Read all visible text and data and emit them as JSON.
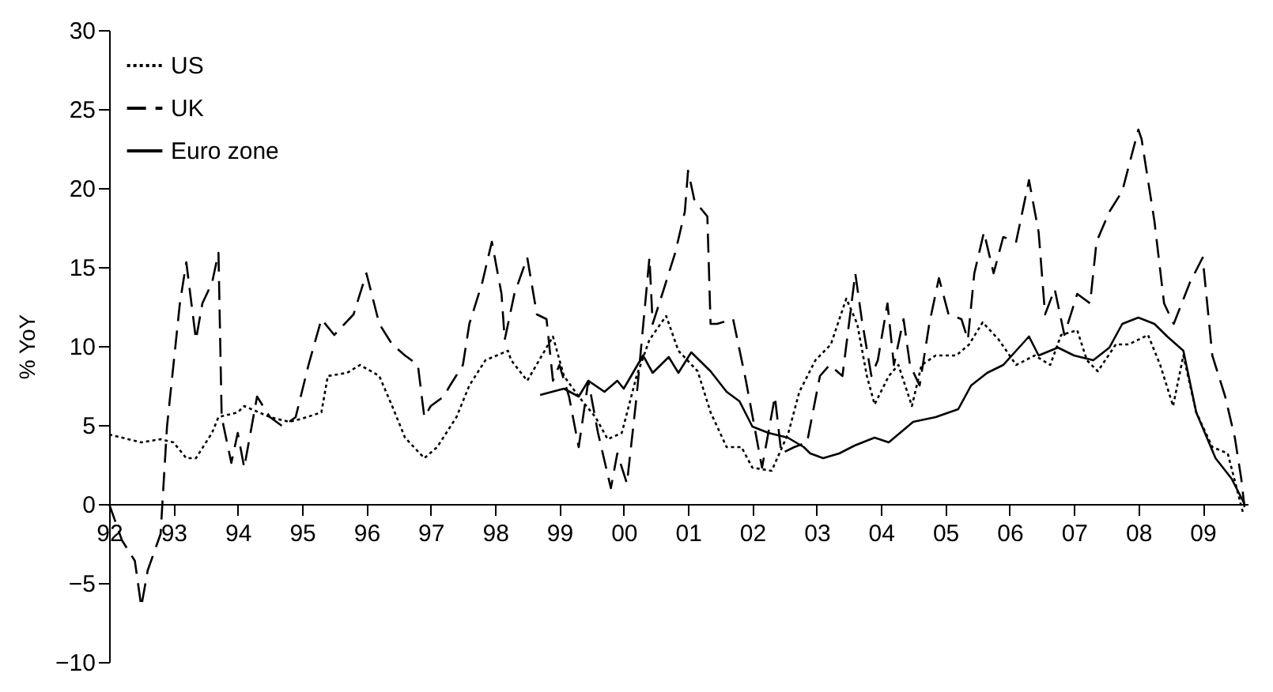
{
  "chart_data": {
    "type": "line",
    "ylabel": "% YoY",
    "legend": "top left",
    "grid": false,
    "marker": "none",
    "xlim": [
      1992,
      2009.7
    ],
    "ylim": [
      -10,
      30
    ],
    "xticks": [
      {
        "value": 1992,
        "label": "92"
      },
      {
        "value": 1993,
        "label": "93"
      },
      {
        "value": 1994,
        "label": "94"
      },
      {
        "value": 1995,
        "label": "95"
      },
      {
        "value": 1996,
        "label": "96"
      },
      {
        "value": 1997,
        "label": "97"
      },
      {
        "value": 1998,
        "label": "98"
      },
      {
        "value": 1999,
        "label": "99"
      },
      {
        "value": 2000,
        "label": "00"
      },
      {
        "value": 2001,
        "label": "01"
      },
      {
        "value": 2002,
        "label": "02"
      },
      {
        "value": 2003,
        "label": "03"
      },
      {
        "value": 2004,
        "label": "04"
      },
      {
        "value": 2005,
        "label": "05"
      },
      {
        "value": 2006,
        "label": "06"
      },
      {
        "value": 2007,
        "label": "07"
      },
      {
        "value": 2008,
        "label": "08"
      },
      {
        "value": 2009,
        "label": "09"
      }
    ],
    "yticks": [
      {
        "value": -10,
        "label": "−10"
      },
      {
        "value": -5,
        "label": "−5"
      },
      0,
      5,
      10,
      15,
      20,
      25,
      30
    ],
    "series": [
      {
        "name": "US",
        "color": "#000000",
        "line_style": "dotted",
        "x": [
          1992.0,
          1992.5,
          1992.8,
          1993.0,
          1993.2,
          1993.35,
          1993.6,
          1993.7,
          1994.0,
          1994.1,
          1994.5,
          1994.8,
          1995.0,
          1995.3,
          1995.4,
          1995.7,
          1995.9,
          1996.2,
          1996.4,
          1996.6,
          1996.9,
          1997.1,
          1997.4,
          1997.6,
          1997.85,
          1998.2,
          1998.25,
          1998.5,
          1998.9,
          1999.07,
          1999.3,
          1999.56,
          1999.75,
          1999.97,
          2000.2,
          2000.4,
          2000.66,
          2000.85,
          2001.15,
          2001.35,
          2001.6,
          2001.83,
          2002.0,
          2002.3,
          2002.56,
          2002.73,
          2002.98,
          2003.22,
          2003.46,
          2003.63,
          2003.78,
          2003.9,
          2004.12,
          2004.27,
          2004.48,
          2004.63,
          2004.85,
          2005.17,
          2005.37,
          2005.58,
          2005.83,
          2006.1,
          2006.39,
          2006.63,
          2006.8,
          2007.05,
          2007.2,
          2007.37,
          2007.65,
          2007.85,
          2008.15,
          2008.34,
          2008.54,
          2008.7,
          2008.9,
          2009.15,
          2009.39,
          2009.63
        ],
        "values": [
          4.4,
          3.9,
          4.1,
          3.9,
          2.9,
          2.9,
          4.5,
          5.5,
          5.8,
          6.2,
          5.5,
          5.2,
          5.4,
          5.8,
          8.1,
          8.3,
          8.8,
          8.1,
          6.2,
          4.2,
          2.9,
          3.6,
          5.5,
          7.5,
          9.1,
          9.7,
          9.1,
          7.8,
          10.6,
          8.1,
          6.8,
          5.5,
          4.1,
          4.5,
          8.1,
          10.4,
          11.9,
          9.7,
          8.4,
          5.8,
          3.6,
          3.6,
          2.3,
          2.1,
          4.5,
          7.1,
          9.1,
          10.1,
          13.0,
          11.4,
          8.1,
          6.3,
          8.1,
          8.8,
          6.2,
          8.8,
          9.4,
          9.4,
          10.1,
          11.5,
          10.4,
          8.8,
          9.4,
          8.8,
          10.7,
          11.0,
          9.1,
          8.4,
          10.1,
          10.1,
          10.7,
          8.8,
          6.2,
          9.4,
          5.8,
          3.6,
          3.2,
          -0.6
        ]
      },
      {
        "name": "UK",
        "color": "#000000",
        "line_style": "dashed",
        "x": [
          1992.0,
          1992.2,
          1992.4,
          1992.5,
          1992.6,
          1992.8,
          1992.9,
          1993.0,
          1993.1,
          1993.2,
          1993.35,
          1993.45,
          1993.6,
          1993.7,
          1993.75,
          1993.9,
          1994.0,
          1994.1,
          1994.3,
          1994.5,
          1994.7,
          1994.9,
          1995.1,
          1995.3,
          1995.5,
          1995.8,
          1996.0,
          1996.2,
          1996.4,
          1996.6,
          1996.8,
          1996.9,
          1997.0,
          1997.2,
          1997.3,
          1997.5,
          1997.6,
          1997.8,
          1997.95,
          1998.1,
          1998.15,
          1998.3,
          1998.5,
          1998.65,
          1998.8,
          1998.9,
          1999.0,
          1999.15,
          1999.3,
          1999.45,
          1999.6,
          1999.8,
          1999.9,
          2000.05,
          2000.2,
          2000.4,
          2000.45,
          2000.6,
          2000.8,
          2000.95,
          2001.0,
          2001.1,
          2001.3,
          2001.35,
          2001.45,
          2001.7,
          2001.9,
          2002.05,
          2002.15,
          2002.35,
          2002.45,
          2002.65,
          2002.85,
          2003.05,
          2003.2,
          2003.4,
          2003.6,
          2003.7,
          2003.85,
          2003.95,
          2004.1,
          2004.2,
          2004.35,
          2004.45,
          2004.6,
          2004.75,
          2004.9,
          2005.05,
          2005.25,
          2005.35,
          2005.45,
          2005.6,
          2005.75,
          2005.9,
          2006.1,
          2006.3,
          2006.45,
          2006.55,
          2006.7,
          2006.85,
          2007.05,
          2007.25,
          2007.35,
          2007.55,
          2007.75,
          2008.0,
          2008.05,
          2008.25,
          2008.4,
          2008.55,
          2008.8,
          2009.0,
          2009.15,
          2009.35,
          2009.5,
          2009.6,
          2009.65
        ],
        "values": [
          0,
          -2.3,
          -3.6,
          -6.5,
          -4.2,
          -1.9,
          4.9,
          8.8,
          12.7,
          15.3,
          10.4,
          12.7,
          14.0,
          15.9,
          5.5,
          2.6,
          4.5,
          2.3,
          6.8,
          5.5,
          4.9,
          5.5,
          8.8,
          11.7,
          10.7,
          12.0,
          14.6,
          11.4,
          10.1,
          9.4,
          8.8,
          5.5,
          6.2,
          6.8,
          7.5,
          8.8,
          11.4,
          14.0,
          16.6,
          13.3,
          10.4,
          13.3,
          15.6,
          12.0,
          11.7,
          7.8,
          8.8,
          6.8,
          3.6,
          7.8,
          4.5,
          1.0,
          3.2,
          1.3,
          6.8,
          15.6,
          11.4,
          13.3,
          15.9,
          18.5,
          21.1,
          19.2,
          18.2,
          11.4,
          11.4,
          11.7,
          7.8,
          4.5,
          2.3,
          6.8,
          3.2,
          3.6,
          3.9,
          8.1,
          8.8,
          8.1,
          14.6,
          11.7,
          8.1,
          9.1,
          12.7,
          8.8,
          11.7,
          8.8,
          7.5,
          11.4,
          14.3,
          12.0,
          11.7,
          10.4,
          14.6,
          17.2,
          14.6,
          16.9,
          16.6,
          20.5,
          17.2,
          12.0,
          13.6,
          10.7,
          13.3,
          12.7,
          16.6,
          18.5,
          19.8,
          23.7,
          23.1,
          17.9,
          12.7,
          11.4,
          14.0,
          15.6,
          9.4,
          6.8,
          4.2,
          1.6,
          -0.2
        ]
      },
      {
        "name": "Euro zone",
        "color": "#000000",
        "line_style": "solid",
        "x": [
          1998.7,
          1999.07,
          1999.3,
          1999.45,
          1999.7,
          1999.9,
          2000.0,
          2000.3,
          2000.45,
          2000.7,
          2000.85,
          2001.05,
          2001.35,
          2001.6,
          2001.8,
          2002.0,
          2002.25,
          2002.55,
          2002.8,
          2002.9,
          2003.1,
          2003.35,
          2003.59,
          2003.9,
          2004.12,
          2004.5,
          2004.85,
          2005.2,
          2005.4,
          2005.65,
          2005.9,
          2006.1,
          2006.3,
          2006.45,
          2006.75,
          2007.0,
          2007.3,
          2007.55,
          2007.75,
          2008.0,
          2008.25,
          2008.45,
          2008.7,
          2008.9,
          2009.2,
          2009.45,
          2009.65
        ],
        "values": [
          6.9,
          7.3,
          6.8,
          7.8,
          7.1,
          7.8,
          7.3,
          9.4,
          8.3,
          9.3,
          8.3,
          9.6,
          8.4,
          7.1,
          6.5,
          4.9,
          4.5,
          4.2,
          3.6,
          3.2,
          2.9,
          3.2,
          3.7,
          4.2,
          3.9,
          5.2,
          5.5,
          6.0,
          7.5,
          8.3,
          8.8,
          9.7,
          10.6,
          9.4,
          9.9,
          9.4,
          9.1,
          9.9,
          11.4,
          11.8,
          11.4,
          10.6,
          9.7,
          5.8,
          2.9,
          1.6,
          0
        ]
      }
    ]
  }
}
